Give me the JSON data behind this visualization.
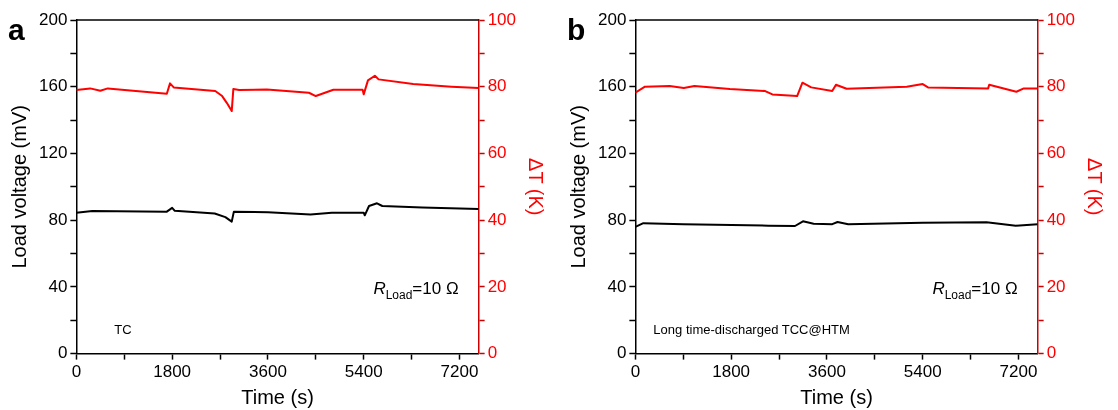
{
  "chart_data": [
    {
      "type": "line",
      "title": "a",
      "xlabel": "Time (s)",
      "ylabel": "Load voltage (mV)",
      "y2label": "ΔT (K)",
      "xlim": [
        0,
        7560
      ],
      "xticks": [
        0,
        {
          "value": 900,
          "label": null
        },
        1800,
        {
          "value": 2700,
          "label": null
        },
        3600,
        {
          "value": 4500,
          "label": null
        },
        5400,
        {
          "value": 6300,
          "label": null
        },
        7200
      ],
      "ylim": [
        0,
        200
      ],
      "yticks": [
        0,
        {
          "value": 20,
          "label": null
        },
        40,
        {
          "value": 60,
          "label": null
        },
        80,
        {
          "value": 100,
          "label": null
        },
        120,
        {
          "value": 140,
          "label": null
        },
        160,
        {
          "value": 180,
          "label": null
        },
        200
      ],
      "y2lim": [
        0,
        100
      ],
      "y2ticks": [
        0,
        {
          "value": 10,
          "label": null
        },
        20,
        {
          "value": 30,
          "label": null
        },
        40,
        {
          "value": 50,
          "label": null
        },
        60,
        {
          "value": 70,
          "label": null
        },
        80,
        {
          "value": 90,
          "label": null
        },
        100
      ],
      "grid": false,
      "legend": false,
      "marker": "none",
      "line_style": "solid",
      "annotations": [
        "R$_{Load}$=10 Ω",
        "TC"
      ],
      "series": [
        {
          "color": "#000000",
          "x": [
            0,
            300,
            1700,
            1800,
            1850,
            2600,
            2800,
            2920,
            2960,
            3600,
            4400,
            4800,
            5400,
            5420,
            5500,
            5650,
            5750,
            6500,
            7560
          ],
          "values": [
            84.5,
            85.5,
            85.1,
            87.4,
            85.6,
            84.0,
            81.8,
            79.1,
            85.1,
            84.7,
            83.4,
            84.5,
            84.5,
            82.9,
            88.5,
            90.1,
            88.5,
            87.6,
            86.7
          ]
        },
        {
          "color": "#ff0000",
          "axis": "y2",
          "x": [
            0,
            260,
            450,
            590,
            1700,
            1760,
            1830,
            2610,
            2740,
            2830,
            2920,
            2950,
            3060,
            3580,
            4370,
            4500,
            4830,
            5380,
            5400,
            5480,
            5610,
            5680,
            6330,
            7050,
            7560
          ],
          "values": [
            79.0,
            79.5,
            78.8,
            79.5,
            77.9,
            81.0,
            79.8,
            78.7,
            77.2,
            75.1,
            72.7,
            79.3,
            79.0,
            79.2,
            78.2,
            77.2,
            79.1,
            79.1,
            77.7,
            81.9,
            83.3,
            82.2,
            80.8,
            80.0,
            79.6
          ]
        }
      ]
    },
    {
      "type": "line",
      "title": "b",
      "xlabel": "Time (s)",
      "ylabel": "Load voltage (mV)",
      "y2label": "ΔT (K)",
      "xlim": [
        0,
        7560
      ],
      "xticks": [
        0,
        {
          "value": 900,
          "label": null
        },
        1800,
        {
          "value": 2700,
          "label": null
        },
        3600,
        {
          "value": 4500,
          "label": null
        },
        5400,
        {
          "value": 6300,
          "label": null
        },
        7200
      ],
      "ylim": [
        0,
        200
      ],
      "yticks": [
        0,
        {
          "value": 20,
          "label": null
        },
        40,
        {
          "value": 60,
          "label": null
        },
        80,
        {
          "value": 100,
          "label": null
        },
        120,
        {
          "value": 140,
          "label": null
        },
        160,
        {
          "value": 180,
          "label": null
        },
        200
      ],
      "y2lim": [
        0,
        100
      ],
      "y2ticks": [
        0,
        {
          "value": 10,
          "label": null
        },
        20,
        {
          "value": 30,
          "label": null
        },
        40,
        {
          "value": 50,
          "label": null
        },
        60,
        {
          "value": 70,
          "label": null
        },
        80,
        {
          "value": 90,
          "label": null
        },
        100
      ],
      "grid": false,
      "legend": false,
      "marker": "none",
      "line_style": "solid",
      "annotations": [
        "R$_{Load}$=10 Ω",
        "Long time-discharged TCC@HTM"
      ],
      "series": [
        {
          "color": "#000000",
          "x": [
            0,
            150,
            900,
            2500,
            3000,
            3150,
            3350,
            3700,
            3800,
            4000,
            5400,
            6600,
            7150,
            7560
          ],
          "values": [
            76.0,
            78.2,
            77.6,
            76.7,
            76.5,
            79.3,
            77.8,
            77.6,
            78.9,
            77.6,
            78.5,
            78.7,
            76.7,
            77.6
          ]
        },
        {
          "color": "#ff0000",
          "axis": "y2",
          "x": [
            0,
            180,
            645,
            910,
            1110,
            1775,
            2440,
            2575,
            3040,
            3140,
            3305,
            3700,
            3770,
            3970,
            5100,
            5400,
            5500,
            6630,
            6650,
            7160,
            7300,
            7560
          ],
          "values": [
            78.2,
            80.0,
            80.2,
            79.6,
            80.2,
            79.3,
            78.7,
            77.7,
            77.2,
            81.2,
            79.8,
            78.7,
            80.6,
            79.4,
            80.0,
            80.8,
            79.8,
            79.5,
            80.6,
            78.5,
            79.5,
            79.5
          ]
        }
      ]
    }
  ]
}
